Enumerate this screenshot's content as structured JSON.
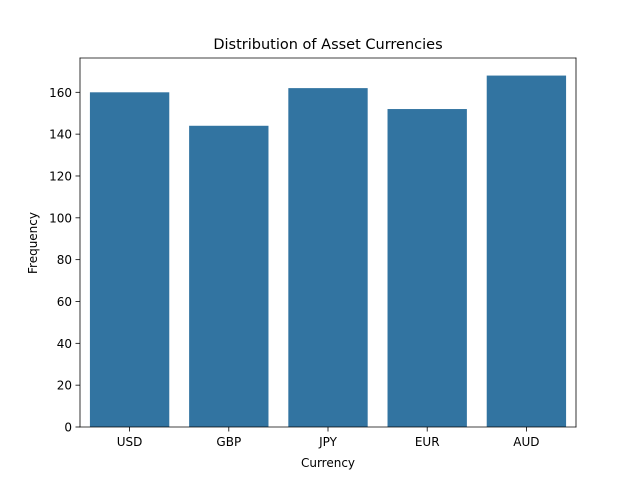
{
  "chart_data": {
    "type": "bar",
    "title": "Distribution of Asset Currencies",
    "xlabel": "Currency",
    "ylabel": "Frequency",
    "categories": [
      "USD",
      "GBP",
      "JPY",
      "EUR",
      "AUD"
    ],
    "values": [
      160,
      144,
      162,
      152,
      168
    ],
    "ylim": [
      0,
      176.4
    ],
    "yticks": [
      0,
      20,
      40,
      60,
      80,
      100,
      120,
      140,
      160
    ],
    "grid": false,
    "bar_color": "#3274a1"
  }
}
